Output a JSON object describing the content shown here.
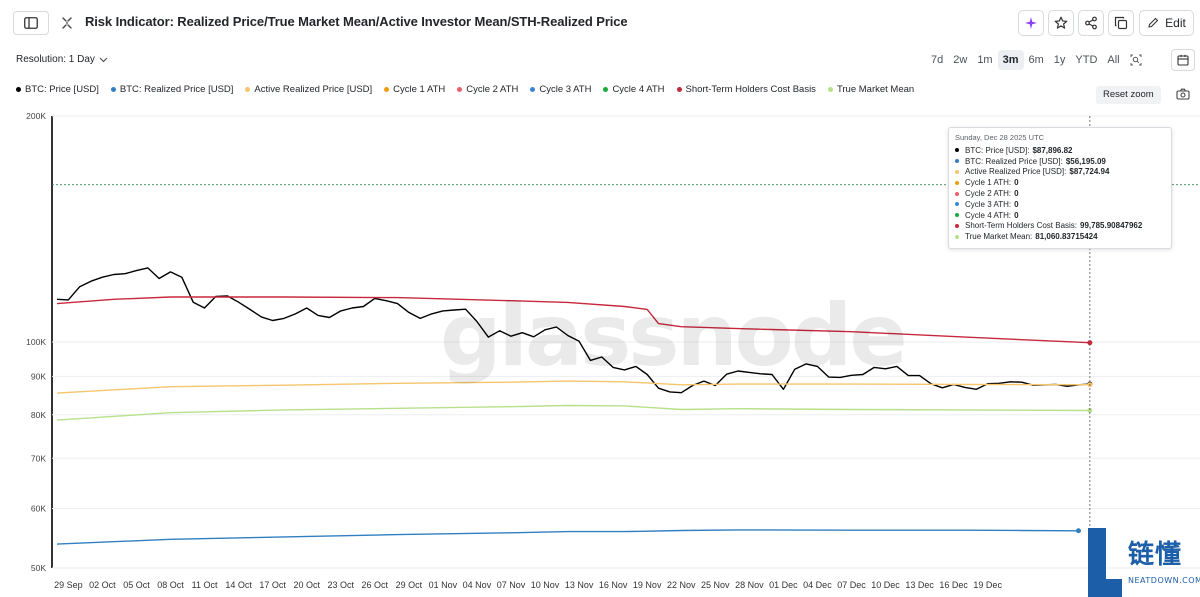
{
  "header": {
    "title": "Risk Indicator: Realized Price/True Market Mean/Active Investor Mean/STH-Realized Price",
    "edit_label": "Edit"
  },
  "controls": {
    "resolution_label": "Resolution: 1 Day",
    "ranges": [
      "7d",
      "2w",
      "1m",
      "3m",
      "6m",
      "1y",
      "YTD",
      "All"
    ],
    "active_range": "3m",
    "reset_zoom_label": "Reset zoom"
  },
  "watermark": "glassnode",
  "corner_logo": {
    "text": "链懂",
    "sub": "NEATDOWN.COM"
  },
  "tooltip": {
    "date": "Sunday, Dec 28 2025 UTC",
    "rows": [
      {
        "label": "BTC: Price [USD]:",
        "value": "$87,896.82",
        "color": "#000000"
      },
      {
        "label": "BTC: Realized Price [USD]:",
        "value": "$56,195.09",
        "color": "#2f7fc1"
      },
      {
        "label": "Active Realized Price [USD]:",
        "value": "$87,724.94",
        "color": "#f5c56b"
      },
      {
        "label": "Cycle 1 ATH:",
        "value": "0",
        "color": "#f39c12"
      },
      {
        "label": "Cycle 2 ATH:",
        "value": "0",
        "color": "#e8606a"
      },
      {
        "label": "Cycle 3 ATH:",
        "value": "0",
        "color": "#3a86d4"
      },
      {
        "label": "Cycle 4 ATH:",
        "value": "0",
        "color": "#1aab3a"
      },
      {
        "label": "Short-Term Holders Cost Basis:",
        "value": "99,785.90847962",
        "color": "#c8283c"
      },
      {
        "label": "True Market Mean:",
        "value": "81,060.83715424",
        "color": "#b8e08a"
      }
    ]
  },
  "chart_data": {
    "type": "line",
    "title": "Risk Indicator: Realized Price/True Market Mean/Active Investor Mean/STH-Realized Price",
    "y_scale": "log",
    "ylim": [
      50000,
      200000
    ],
    "y_ticks": [
      {
        "value": 200000,
        "label": "200K"
      },
      {
        "value": 100000,
        "label": "100K"
      },
      {
        "value": 90000,
        "label": "90K"
      },
      {
        "value": 80000,
        "label": "80K"
      },
      {
        "value": 70000,
        "label": "70K"
      },
      {
        "value": 60000,
        "label": "60K"
      },
      {
        "value": 50000,
        "label": "50K"
      }
    ],
    "x_ticks": [
      "29 Sep",
      "02 Oct",
      "05 Oct",
      "08 Oct",
      "11 Oct",
      "14 Oct",
      "17 Oct",
      "20 Oct",
      "23 Oct",
      "26 Oct",
      "29 Oct",
      "01 Nov",
      "04 Nov",
      "07 Nov",
      "10 Nov",
      "13 Nov",
      "16 Nov",
      "19 Nov",
      "22 Nov",
      "25 Nov",
      "28 Nov",
      "01 Dec",
      "04 Dec",
      "07 Dec",
      "10 Dec",
      "13 Dec",
      "16 Dec",
      "19 Dec"
    ],
    "x_start": "2025-09-28",
    "crosshair_day": 91,
    "crosshair_value": 162000,
    "series": [
      {
        "name": "BTC: Price [USD]",
        "color": "#000000",
        "width": 1.4,
        "days": [
          0,
          1,
          2,
          3,
          4,
          5,
          6,
          7,
          8,
          9,
          10,
          11,
          12,
          13,
          14,
          15,
          16,
          17,
          18,
          19,
          20,
          21,
          22,
          23,
          24,
          25,
          26,
          27,
          28,
          29,
          30,
          31,
          32,
          33,
          34,
          35,
          36,
          37,
          38,
          39,
          40,
          41,
          42,
          43,
          44,
          45,
          46,
          47,
          48,
          49,
          50,
          51,
          52,
          53,
          54,
          55,
          56,
          57,
          58,
          59,
          60,
          61,
          62,
          63,
          64,
          65,
          66,
          67,
          68,
          69,
          70,
          71,
          72,
          73,
          74,
          75,
          76,
          77,
          78,
          79,
          80,
          81,
          82,
          83,
          84,
          85,
          86,
          87,
          88,
          89,
          90,
          91
        ],
        "values": [
          114000,
          113800,
          118500,
          120500,
          122000,
          123000,
          123300,
          124500,
          125500,
          121500,
          124000,
          122000,
          113000,
          111000,
          115000,
          115200,
          113000,
          110500,
          108000,
          106800,
          107500,
          109000,
          111000,
          108500,
          107800,
          110000,
          111000,
          111500,
          114300,
          113500,
          112500,
          109500,
          107500,
          109000,
          110000,
          110300,
          110600,
          106500,
          101500,
          103500,
          101800,
          102900,
          101600,
          103800,
          104700,
          102000,
          100200,
          94500,
          95500,
          92500,
          91800,
          92800,
          90500,
          86800,
          85800,
          85600,
          87500,
          88700,
          87500,
          90600,
          91500,
          91100,
          90700,
          90500,
          86500,
          92000,
          93500,
          92800,
          89800,
          89700,
          90300,
          90500,
          92500,
          92100,
          92800,
          90200,
          90200,
          88000,
          86900,
          87800,
          87000,
          86500,
          88000,
          88100,
          88500,
          88400,
          87600,
          87700,
          87800,
          87300,
          87700,
          87896.82
        ]
      },
      {
        "name": "BTC: Realized Price [USD]",
        "color": "#2f7fc1",
        "width": 1.4,
        "days": [
          0,
          10,
          20,
          30,
          40,
          45,
          50,
          55,
          60,
          70,
          80,
          85,
          90
        ],
        "values": [
          53800,
          54600,
          55000,
          55400,
          55700,
          55900,
          55900,
          56100,
          56200,
          56150,
          56150,
          56100,
          56050
        ]
      },
      {
        "name": "Active Realized Price [USD]",
        "color": "#f5c56b",
        "width": 1.4,
        "days": [
          0,
          10,
          20,
          30,
          40,
          45,
          50,
          55,
          60,
          70,
          80,
          91
        ],
        "values": [
          85500,
          87200,
          87600,
          88100,
          88400,
          88700,
          88500,
          87700,
          87900,
          87900,
          87800,
          87724.94
        ]
      },
      {
        "name": "Cycle 1 ATH",
        "color": "#f39c12",
        "width": 1.4,
        "days": [],
        "values": []
      },
      {
        "name": "Cycle 2 ATH",
        "color": "#e8606a",
        "width": 1.4,
        "days": [],
        "values": []
      },
      {
        "name": "Cycle 3 ATH",
        "color": "#3a86d4",
        "width": 1.4,
        "days": [],
        "values": []
      },
      {
        "name": "Cycle 4 ATH",
        "color": "#1aab3a",
        "width": 1.4,
        "days": [],
        "values": []
      },
      {
        "name": "Short-Term Holders Cost Basis",
        "color": "#c8283c",
        "width": 1.4,
        "days": [
          0,
          5,
          10,
          20,
          30,
          40,
          45,
          50,
          52,
          53,
          55,
          60,
          70,
          80,
          91
        ],
        "values": [
          112500,
          114000,
          114800,
          114800,
          114600,
          113500,
          112900,
          111500,
          110500,
          105800,
          104800,
          104200,
          103200,
          101500,
          99785.90847962
        ]
      },
      {
        "name": "True Market Mean",
        "color": "#b8e08a",
        "width": 1.4,
        "days": [
          0,
          10,
          20,
          30,
          40,
          45,
          50,
          55,
          60,
          70,
          80,
          91
        ],
        "values": [
          78700,
          80500,
          81200,
          81600,
          82000,
          82300,
          82200,
          81300,
          81500,
          81300,
          81200,
          81060.83715424
        ]
      }
    ]
  }
}
